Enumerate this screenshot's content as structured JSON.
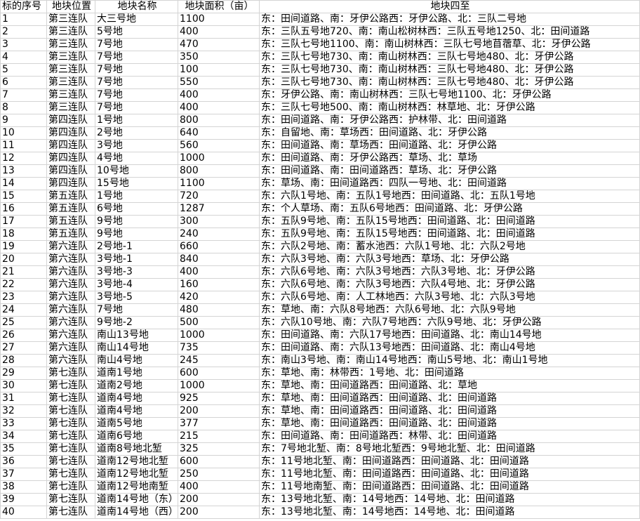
{
  "headers": [
    "标的序号",
    "地块位置",
    "地块名称",
    "地块面积（亩）",
    "地块四至"
  ],
  "rows": [
    [
      "1",
      "第三连队",
      "大三号地",
      "1100",
      "东：田间道路、南：牙伊公路西：牙伊公路、北：三队二号地"
    ],
    [
      "2",
      "第三连队",
      "5号地",
      "400",
      "东：三队五号地720、南：南山松树林西：三队五号地1250、北：田间道路"
    ],
    [
      "3",
      "第三连队",
      "7号地",
      "470",
      "东：三队七号地1100、南：南山树林西：三队七号地苜蓿草、北：牙伊公路"
    ],
    [
      "4",
      "第三连队",
      "7号地",
      "350",
      "东：三队七号地730、南：南山树林西：三队七号地480、北：牙伊公路"
    ],
    [
      "5",
      "第三连队",
      "7号地",
      "100",
      "东：三队七号地730、南：南山树林西：三队七号地480、北：牙伊公路"
    ],
    [
      "6",
      "第三连队",
      "7号地",
      "550",
      "东：三队七号地730、南：南山树林西：三队七号地480、北：牙伊公路"
    ],
    [
      "7",
      "第三连队",
      "7号地",
      "400",
      "东：牙伊公路、南：南山树林西：三队七号地1100、北：牙伊公路"
    ],
    [
      "8",
      "第三连队",
      "7号地",
      "400",
      "东：三队七号地500、南：南山树林西：林草地、北：牙伊公路"
    ],
    [
      "9",
      "第四连队",
      "1号地",
      "800",
      "东：田间道路、南：牙伊公路西：护林带、北：田间道路"
    ],
    [
      "10",
      "第四连队",
      "2号地",
      "640",
      "东：自留地、南：草场西：田间道路、北：牙伊公路"
    ],
    [
      "11",
      "第四连队",
      "3号地",
      "560",
      "东：田间道路、南：草场西：田间道路、北：牙伊公路"
    ],
    [
      "12",
      "第四连队",
      "4号地",
      "1000",
      "东：田间道路、南：牙伊公路西：草场、北：草场"
    ],
    [
      "13",
      "第四连队",
      "10号地",
      "800",
      "东：田间道路、南：田间道路西：草场、北：牙伊公路"
    ],
    [
      "14",
      "第四连队",
      "15号地",
      "1100",
      "东：草场、南：田间道路西：四队一号地、北：田间道路"
    ],
    [
      "15",
      "第五连队",
      "1号地",
      "720",
      "东：六队1号地、南：五队1号地西：田间道路、北：五队1号地"
    ],
    [
      "16",
      "第五连队",
      "6号地",
      "1287",
      "东：个人草场、南：五队6号地西：田间道路、北：牙伊公路"
    ],
    [
      "17",
      "第五连队",
      "9号地",
      "300",
      "东：五队9号地、南：五队15号地西：田间道路、北：田间道路"
    ],
    [
      "18",
      "第五连队",
      "9号地",
      "240",
      "东：五队9号地、南：五队15号地西：田间道路、北：田间道路"
    ],
    [
      "19",
      "第六连队",
      "2号地-1",
      "660",
      "东：六队2号地、南：蓄水池西：六队1号地、北：六队2号地"
    ],
    [
      "20",
      "第六连队",
      "3号地-1",
      "840",
      "东：六队3号地、南：六队3号地西：草场、北：牙伊公路"
    ],
    [
      "21",
      "第六连队",
      "3号地-3",
      "400",
      "东：六队6号地、南：六队3号地西：六队3号地、北：牙伊公路"
    ],
    [
      "22",
      "第六连队",
      "3号地-4",
      "160",
      "东：六队6号地、南：六队3号地西：六队4号地、北：牙伊公路"
    ],
    [
      "23",
      "第六连队",
      "3号地-5",
      "420",
      "东：六队6号地、南：人工林地西：六队3号地、北：六队3号地"
    ],
    [
      "24",
      "第六连队",
      "7号地",
      "480",
      "东：草地、南：六队8号地西：六队6号地、北：六队9号地"
    ],
    [
      "25",
      "第六连队",
      "9号地-2",
      "500",
      "东：六队10号地、南：六队7号地西：六队9号地、北：牙伊公路"
    ],
    [
      "26",
      "第六连队",
      "南山13号地",
      "1000",
      "东：田间道路、南：六队17号地西：田间道路、北：南山14号地"
    ],
    [
      "27",
      "第六连队",
      "南山14号地",
      "735",
      "东：田间道路、南：六队13号地西：田间道路、北：南山4号地"
    ],
    [
      "28",
      "第六连队",
      "南山4号地",
      "245",
      "东：南山3号地、南：南山14号地西：南山5号地、北：南山1号地"
    ],
    [
      "29",
      "第七连队",
      "道南1号地",
      "600",
      "东：草地、南：林带西：1号地、北：田间道路"
    ],
    [
      "30",
      "第七连队",
      "道南2号地",
      "1000",
      "东：草地、南：田间道路西：田间道路、北：草地"
    ],
    [
      "31",
      "第七连队",
      "道南4号地",
      "925",
      "东：草地、南：田间道路西：田间道路、北：田间道路"
    ],
    [
      "32",
      "第七连队",
      "道南4号地",
      "200",
      "东：草地、南：田间道路西：田间道路、北：田间道路"
    ],
    [
      "33",
      "第七连队",
      "道南5号地",
      "377",
      "东：草地、南：田间道路西：田间道路、北：田间道路"
    ],
    [
      "34",
      "第七连队",
      "道南6号地",
      "215",
      "东：田间道路、南：田间道路西：林带、北：田间道路"
    ],
    [
      "35",
      "第七连队",
      "道南8号地北堑",
      "325",
      "东：7号地北堑、南：8号地北堑西：9号地北堑、北：田间道路"
    ],
    [
      "36",
      "第七连队",
      "道南12号地北堑",
      "600",
      "东：11号地北堑、南：田间道路西：田间道路、北：田间道路"
    ],
    [
      "37",
      "第七连队",
      "道南12号地北堑",
      "250",
      "东：11号地北堑、南：田间道路西：田间道路、北：田间道路"
    ],
    [
      "38",
      "第七连队",
      "道南12号地南堑",
      "400",
      "东：11号地南堑、南：田间道路西：田间道路、北：田间道路"
    ],
    [
      "39",
      "第七连队",
      "道南14号地（东）",
      "200",
      "东：13号地北堑、南：14号地西：14号地、北：田间道路"
    ],
    [
      "40",
      "第七连队",
      "道南14号地（西）",
      "200",
      "东：13号地北堑、南：14号地西：14号地、北：田间道路"
    ]
  ]
}
